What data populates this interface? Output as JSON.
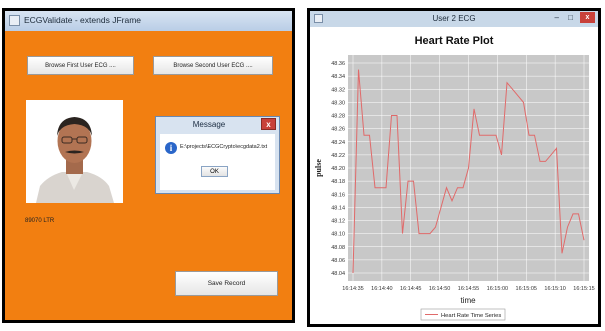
{
  "left_window": {
    "title": "ECGValidate - extends JFrame",
    "browse_first_label": "Browse First User ECG ....",
    "browse_second_label": "Browse Second User ECG ....",
    "save_label": "Save Record",
    "status_text": "89070 LTR",
    "colors": {
      "background": "#f27f11"
    },
    "dialog": {
      "title": "Message",
      "message": "E:\\projects\\ECGCrypto\\ecgdata2.txt",
      "ok_label": "OK",
      "icon": "info-icon"
    }
  },
  "right_window": {
    "title": "User 2 ECG",
    "minimize_glyph": "–",
    "maximize_glyph": "□",
    "close_glyph": "x"
  },
  "chart_data": {
    "type": "line",
    "title": "Heart Rate Plot",
    "xlabel": "time",
    "ylabel": "pulse",
    "ylim": [
      48.04,
      48.36
    ],
    "yticks": [
      "48.36",
      "48.34",
      "48.32",
      "48.30",
      "48.28",
      "48.26",
      "48.24",
      "48.22",
      "48.20",
      "48.18",
      "48.16",
      "48.14",
      "48.12",
      "48.10",
      "48.08",
      "48.06",
      "48.04"
    ],
    "xticks": [
      "16:14:35",
      "16:14:40",
      "16:14:45",
      "16:14:50",
      "16:14:55",
      "16:15:00",
      "16:15:05",
      "16:15:10",
      "16:15:15"
    ],
    "xlim": [
      0,
      42
    ],
    "grid": true,
    "legend_position": "bottom",
    "series": [
      {
        "name": "Heart Rate Time Series",
        "color": "#e06a6a",
        "x": [
          0,
          1,
          2,
          3,
          4,
          5,
          6,
          7,
          8,
          9,
          10,
          11,
          12,
          13,
          14,
          15,
          16,
          17,
          18,
          19,
          20,
          21,
          22,
          23,
          24,
          25,
          26,
          27,
          28,
          29,
          30,
          31,
          32,
          33,
          34,
          35,
          36,
          37,
          38,
          39,
          40,
          41,
          42
        ],
        "values": [
          48.04,
          48.35,
          48.25,
          48.25,
          48.17,
          48.17,
          48.17,
          48.28,
          48.28,
          48.1,
          48.18,
          48.18,
          48.1,
          48.1,
          48.1,
          48.11,
          48.14,
          48.17,
          48.15,
          48.17,
          48.17,
          48.2,
          48.29,
          48.25,
          48.25,
          48.25,
          48.25,
          48.22,
          48.33,
          48.32,
          48.31,
          48.3,
          48.25,
          48.25,
          48.21,
          48.21,
          48.22,
          48.23,
          48.07,
          48.11,
          48.13,
          48.13,
          48.09
        ]
      }
    ]
  }
}
